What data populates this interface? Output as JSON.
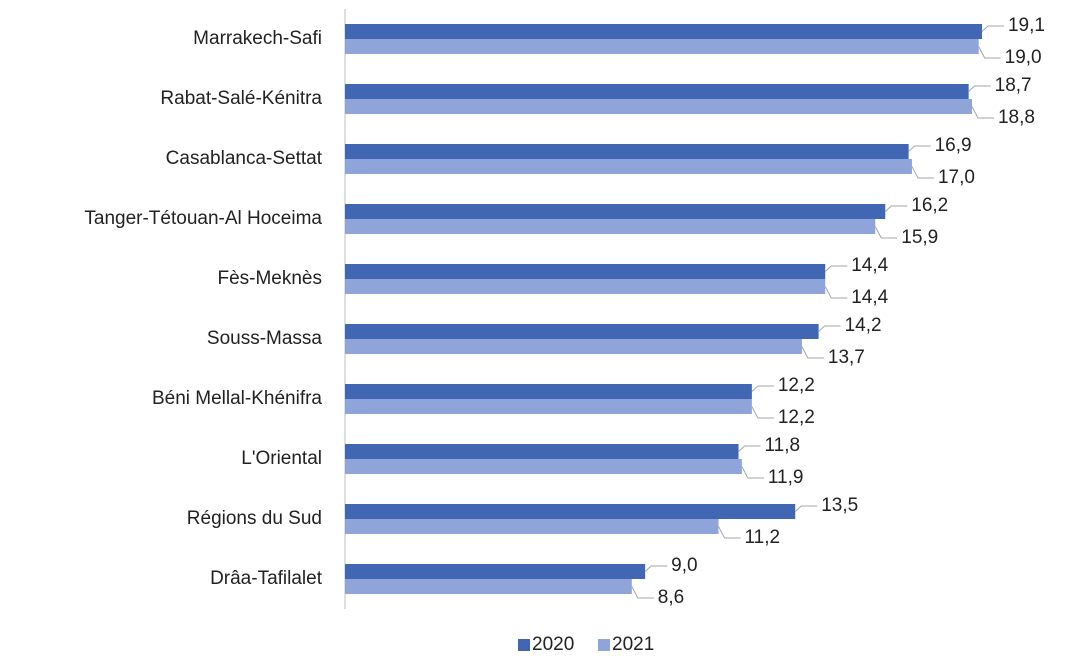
{
  "chart_data": {
    "type": "barh",
    "categories": [
      "Marrakech-Safi",
      "Rabat-Salé-Kénitra",
      "Casablanca-Settat",
      "Tanger-Tétouan-Al Hoceima",
      "Fès-Meknès",
      "Souss-Massa",
      "Béni Mellal-Khénifra",
      "L'Oriental",
      "Régions du Sud",
      "Drâa-Tafilalet"
    ],
    "series": [
      {
        "name": "2020",
        "color": "#4166b3",
        "values": [
          19.1,
          18.7,
          16.9,
          16.2,
          14.4,
          14.2,
          12.2,
          11.8,
          13.5,
          9.0
        ],
        "value_labels": [
          "19,1",
          "18,7",
          "16,9",
          "16,2",
          "14,4",
          "14,2",
          "12,2",
          "11,8",
          "13,5",
          "9,0"
        ]
      },
      {
        "name": "2021",
        "color": "#8fa4d8",
        "values": [
          19.0,
          18.8,
          17.0,
          15.9,
          14.4,
          13.7,
          12.2,
          11.9,
          11.2,
          8.6
        ],
        "value_labels": [
          "19,0",
          "18,8",
          "17,0",
          "15,9",
          "14,4",
          "13,7",
          "12,2",
          "11,9",
          "11,2",
          "8,6"
        ]
      }
    ],
    "xlim": [
      0,
      20
    ],
    "legend": "bottom"
  }
}
